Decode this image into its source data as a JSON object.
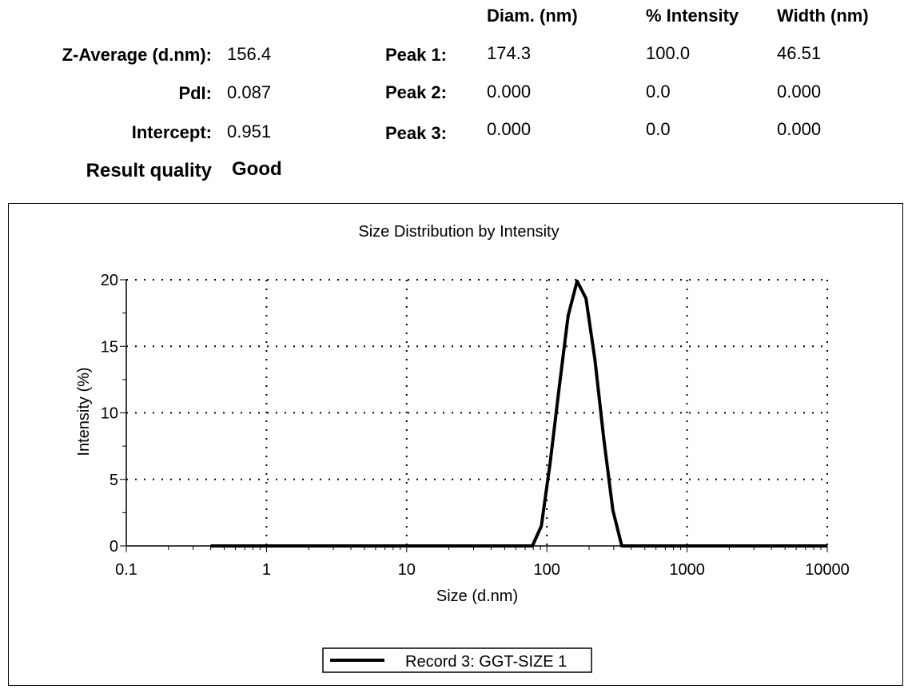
{
  "summary": {
    "columns": [
      "Diam. (nm)",
      "% Intensity",
      "Width (nm)"
    ],
    "left_rows": [
      {
        "label": "Z-Average (d.nm):",
        "value": "156.4"
      },
      {
        "label": "PdI:",
        "value": "0.087"
      },
      {
        "label": "Intercept:",
        "value": "0.951"
      }
    ],
    "result_quality": {
      "label": "Result quality",
      "value": "Good"
    },
    "peaks": [
      {
        "label": "Peak 1:",
        "diam": "174.3",
        "intensity": "100.0",
        "width": "46.51"
      },
      {
        "label": "Peak 2:",
        "diam": "0.000",
        "intensity": "0.0",
        "width": "0.000"
      },
      {
        "label": "Peak 3:",
        "diam": "0.000",
        "intensity": "0.0",
        "width": "0.000"
      }
    ]
  },
  "chart_data": {
    "type": "line",
    "title": "Size Distribution by Intensity",
    "xlabel": "Size (d.nm)",
    "ylabel": "Intensity (%)",
    "x_scale": "log",
    "xlim": [
      0.1,
      10000
    ],
    "ylim": [
      0,
      20
    ],
    "x_ticks": [
      0.1,
      1,
      10,
      100,
      1000,
      10000
    ],
    "x_tick_labels": [
      "0.1",
      "1",
      "10",
      "100",
      "1000",
      "10000"
    ],
    "y_ticks": [
      0,
      5,
      10,
      15,
      20
    ],
    "y_tick_labels": [
      "0",
      "5",
      "10",
      "15",
      "20"
    ],
    "grid": true,
    "legend_position": "bottom-center",
    "series": [
      {
        "name": "Record 3: GGT-SIZE 1",
        "color": "#000000",
        "x": [
          0.4,
          1,
          10,
          50,
          78.8,
          91.3,
          105.7,
          122.4,
          141.8,
          164.2,
          190.1,
          220.2,
          255.0,
          295.3,
          342.0,
          1000,
          10000
        ],
        "y": [
          0,
          0,
          0,
          0,
          0,
          1.5,
          6.3,
          11.9,
          17.3,
          19.9,
          18.6,
          14.0,
          8.0,
          2.7,
          0,
          0,
          0
        ]
      }
    ]
  }
}
